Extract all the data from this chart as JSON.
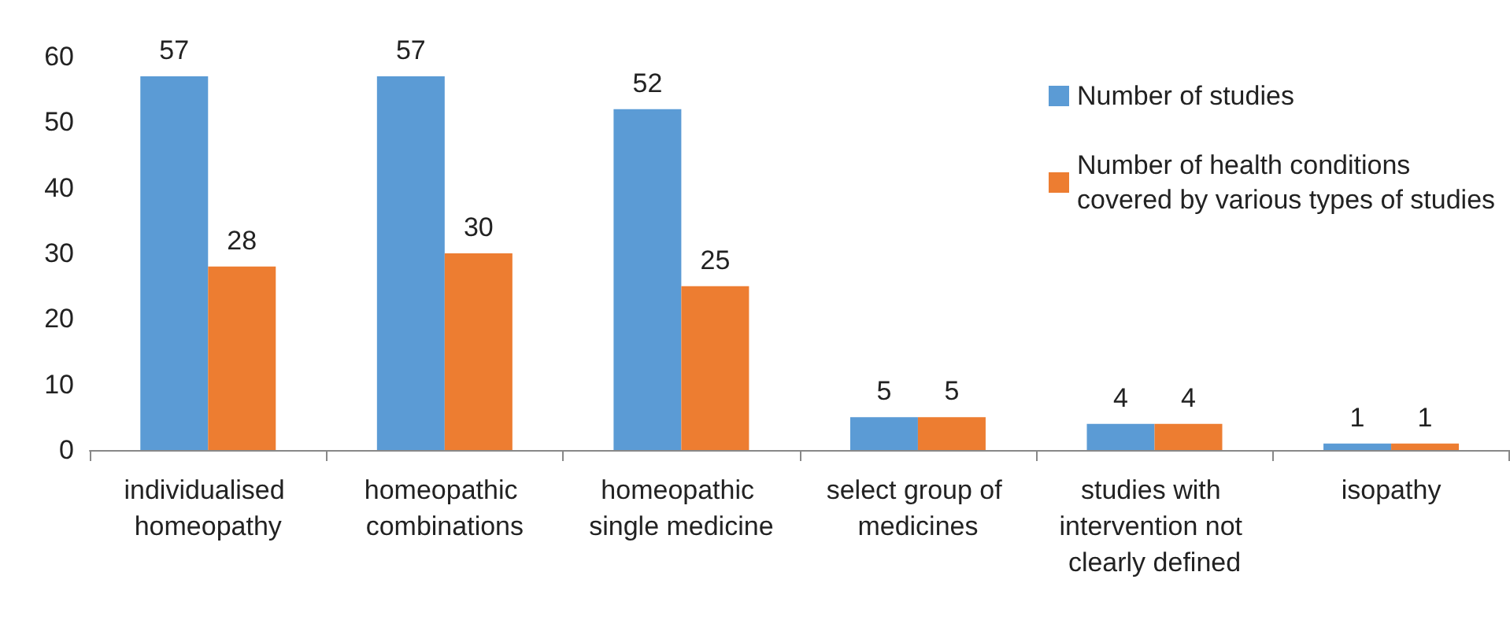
{
  "chart_data": {
    "type": "bar",
    "categories": [
      "individualised homeopathy",
      "homeopathic combinations",
      "homeopathic single medicine",
      "select group of medicines",
      "studies with intervention not clearly defined",
      "isopathy"
    ],
    "series": [
      {
        "name": "Number of studies",
        "color": "#5b9bd5",
        "values": [
          57,
          57,
          52,
          5,
          4,
          1
        ]
      },
      {
        "name": "Number of health conditions covered by various types of studies",
        "color": "#ed7d31",
        "values": [
          28,
          30,
          25,
          5,
          4,
          1
        ]
      }
    ],
    "ylim": [
      0,
      60
    ],
    "yticks": [
      0,
      10,
      20,
      30,
      40,
      50,
      60
    ],
    "grid": false,
    "legend": "top right",
    "data_labels": true
  }
}
